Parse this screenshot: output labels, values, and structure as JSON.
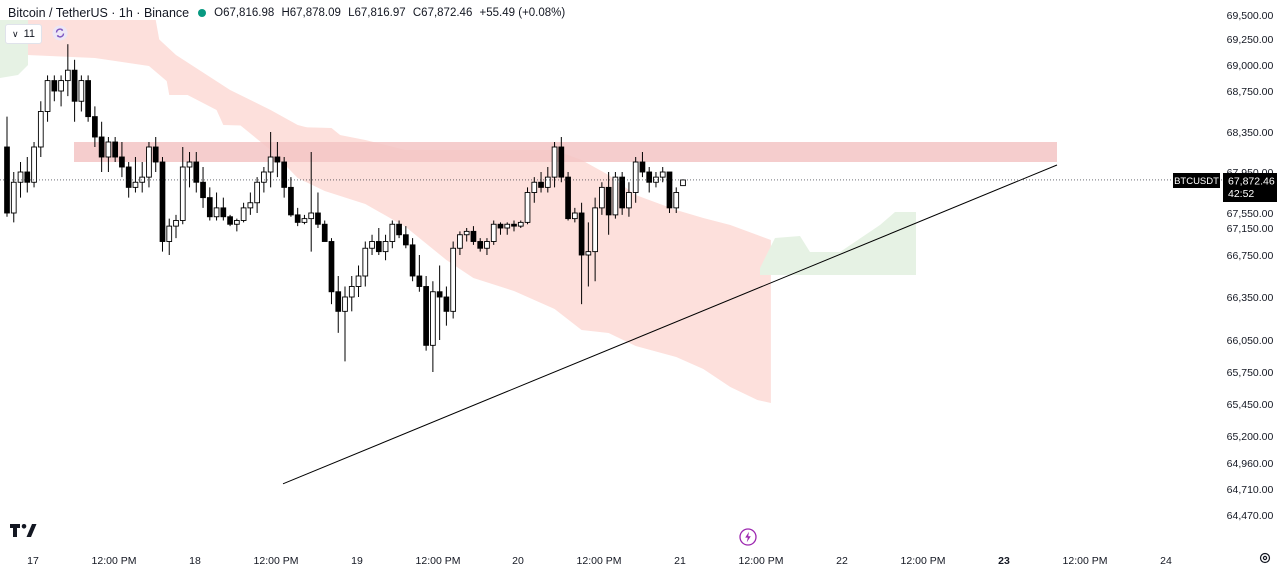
{
  "header": {
    "symbol": "Bitcoin / TetherUS · 1h · Binance",
    "open": "O67,816.98",
    "high": "H67,878.09",
    "low": "L67,816.97",
    "close": "C67,872.46",
    "change": "+55.49 (+0.08%)",
    "status_color": "#089981"
  },
  "indicator_legend": {
    "label": "11",
    "icon": "chevron-down-icon"
  },
  "price_tag": {
    "ticker": "BTCUSDT",
    "price": "67,872.46",
    "countdown": "42:52"
  },
  "colors": {
    "up_body": "#ffffff",
    "down_body": "#000000",
    "wick": "#000000",
    "cloud_bear": "#fde0dc",
    "cloud_bull": "#e6f2e4",
    "resistance_zone": "#f3c4c4",
    "trendline": "#000000",
    "axis_text": "#131722"
  },
  "icons": {
    "logo": "tradingview-logo-icon",
    "sync": "sync-icon",
    "bolt": "lightning-icon",
    "settings": "settings-icon"
  },
  "chart_data": {
    "type": "candlestick",
    "ylim": [
      64400,
      69550
    ],
    "y_ticks": [
      "69,500.00",
      "69,250.00",
      "69,000.00",
      "68,750.00",
      "68,350.00",
      "67,950.00",
      "67,550.00",
      "67,150.00",
      "66,750.00",
      "66,350.00",
      "66,050.00",
      "65,750.00",
      "65,450.00",
      "65,200.00",
      "64,960.00",
      "64,710.00",
      "64,470.00"
    ],
    "x_ticks": [
      "17",
      "12:00 PM",
      "18",
      "12:00 PM",
      "19",
      "12:00 PM",
      "20",
      "12:00 PM",
      "21",
      "12:00 PM",
      "22",
      "12:00 PM",
      "23",
      "12:00 PM",
      "24"
    ],
    "candles": [
      [
        68200,
        68500,
        67450,
        67550
      ],
      [
        67550,
        67950,
        67300,
        67850
      ],
      [
        67850,
        68050,
        67700,
        67950
      ],
      [
        67950,
        68100,
        67750,
        67850
      ],
      [
        67850,
        68250,
        67800,
        68200
      ],
      [
        68200,
        68650,
        68100,
        68550
      ],
      [
        68550,
        68900,
        68450,
        68850
      ],
      [
        68850,
        68900,
        68650,
        68750
      ],
      [
        68750,
        68900,
        68600,
        68850
      ],
      [
        68850,
        69200,
        68700,
        68950
      ],
      [
        68950,
        69050,
        68450,
        68650
      ],
      [
        68650,
        68900,
        68550,
        68850
      ],
      [
        68850,
        68900,
        68450,
        68500
      ],
      [
        68500,
        68600,
        68200,
        68300
      ],
      [
        68300,
        68450,
        67950,
        68100
      ],
      [
        68100,
        68300,
        67950,
        68250
      ],
      [
        68250,
        68300,
        68050,
        68100
      ],
      [
        68100,
        68250,
        67900,
        68000
      ],
      [
        68000,
        68050,
        67700,
        67800
      ],
      [
        67800,
        68100,
        67750,
        67850
      ],
      [
        67850,
        68050,
        67750,
        67900
      ],
      [
        67900,
        68250,
        67800,
        68200
      ],
      [
        68200,
        68300,
        67950,
        68050
      ],
      [
        68050,
        68100,
        66800,
        66950
      ],
      [
        66950,
        67400,
        66750,
        67200
      ],
      [
        67200,
        67500,
        67000,
        67350
      ],
      [
        67350,
        68200,
        67250,
        68000
      ],
      [
        68000,
        68150,
        67800,
        68050
      ],
      [
        68050,
        68150,
        67750,
        67850
      ],
      [
        67850,
        68000,
        67600,
        67700
      ],
      [
        67700,
        67800,
        67350,
        67450
      ],
      [
        67450,
        67750,
        67350,
        67600
      ],
      [
        67600,
        67700,
        67350,
        67450
      ],
      [
        67450,
        67500,
        67200,
        67250
      ],
      [
        67250,
        67400,
        67100,
        67350
      ],
      [
        67350,
        67650,
        67300,
        67600
      ],
      [
        67600,
        67750,
        67500,
        67650
      ],
      [
        67650,
        67900,
        67550,
        67850
      ],
      [
        67850,
        68000,
        67750,
        67950
      ],
      [
        67950,
        68350,
        67800,
        68100
      ],
      [
        68100,
        68250,
        67900,
        68050
      ],
      [
        68050,
        68100,
        67700,
        67800
      ],
      [
        67800,
        67900,
        67450,
        67500
      ],
      [
        67500,
        67600,
        67200,
        67300
      ],
      [
        67300,
        67500,
        67250,
        67400
      ],
      [
        67400,
        68150,
        66800,
        67550
      ],
      [
        67550,
        67750,
        67150,
        67250
      ],
      [
        67250,
        67350,
        66950,
        66950
      ],
      [
        66950,
        67000,
        66300,
        66400
      ],
      [
        66400,
        66550,
        66100,
        66250
      ],
      [
        66250,
        66450,
        65850,
        66350
      ],
      [
        66350,
        66550,
        66250,
        66450
      ],
      [
        66450,
        66650,
        66350,
        66550
      ],
      [
        66550,
        66950,
        66450,
        66850
      ],
      [
        66850,
        67050,
        66750,
        66950
      ],
      [
        66950,
        67150,
        66750,
        66800
      ],
      [
        66800,
        67050,
        66700,
        66950
      ],
      [
        66950,
        67350,
        66850,
        67250
      ],
      [
        67250,
        67350,
        67000,
        67050
      ],
      [
        67050,
        67200,
        66850,
        66900
      ],
      [
        66900,
        67000,
        66500,
        66550
      ],
      [
        66550,
        66750,
        66400,
        66450
      ],
      [
        66450,
        66550,
        65950,
        66000
      ],
      [
        66000,
        66500,
        65750,
        66400
      ],
      [
        66400,
        66650,
        66050,
        66350
      ],
      [
        66350,
        66450,
        66150,
        66250
      ],
      [
        66250,
        66950,
        66200,
        66850
      ],
      [
        66850,
        67100,
        66750,
        67050
      ],
      [
        67050,
        67150,
        66950,
        67100
      ],
      [
        67100,
        67200,
        66900,
        66950
      ],
      [
        66950,
        67000,
        66800,
        66850
      ],
      [
        66850,
        67000,
        66750,
        66950
      ],
      [
        66950,
        67350,
        66900,
        67250
      ],
      [
        67250,
        67300,
        67050,
        67150
      ],
      [
        67150,
        67300,
        67050,
        67250
      ],
      [
        67250,
        67350,
        67100,
        67200
      ],
      [
        67200,
        67350,
        67150,
        67300
      ],
      [
        67300,
        67800,
        67250,
        67750
      ],
      [
        67750,
        67900,
        67650,
        67850
      ],
      [
        67850,
        67950,
        67750,
        67800
      ],
      [
        67800,
        68000,
        67750,
        67900
      ],
      [
        67900,
        68250,
        67800,
        68200
      ],
      [
        68200,
        68300,
        67850,
        67900
      ],
      [
        67900,
        67950,
        67350,
        67400
      ],
      [
        67400,
        67600,
        67300,
        67550
      ],
      [
        67550,
        67650,
        66300,
        66750
      ],
      [
        66750,
        67300,
        66450,
        66800
      ],
      [
        66800,
        67700,
        66500,
        67600
      ],
      [
        67600,
        67850,
        67500,
        67800
      ],
      [
        67800,
        67950,
        67050,
        67500
      ],
      [
        67500,
        67950,
        67400,
        67900
      ],
      [
        67900,
        67950,
        67500,
        67600
      ],
      [
        67600,
        67850,
        67450,
        67750
      ],
      [
        67750,
        68100,
        67650,
        68050
      ],
      [
        68050,
        68150,
        67900,
        67950
      ],
      [
        67950,
        68000,
        67750,
        67850
      ],
      [
        67850,
        67950,
        67800,
        67900
      ],
      [
        67900,
        68000,
        67850,
        67950
      ],
      [
        67950,
        67950,
        67550,
        67600
      ],
      [
        67600,
        67800,
        67550,
        67750
      ],
      [
        67816.98,
        67878.09,
        67816.97,
        67872.46
      ]
    ],
    "resistance_zone": {
      "from": 68050,
      "to": 68250
    },
    "trendline": {
      "start_candle": 34,
      "start_price": 64760,
      "mid_candle": 60,
      "mid_price": 65750,
      "end_candle": 132,
      "end_price": 68020
    },
    "last_price": 67872.46
  }
}
